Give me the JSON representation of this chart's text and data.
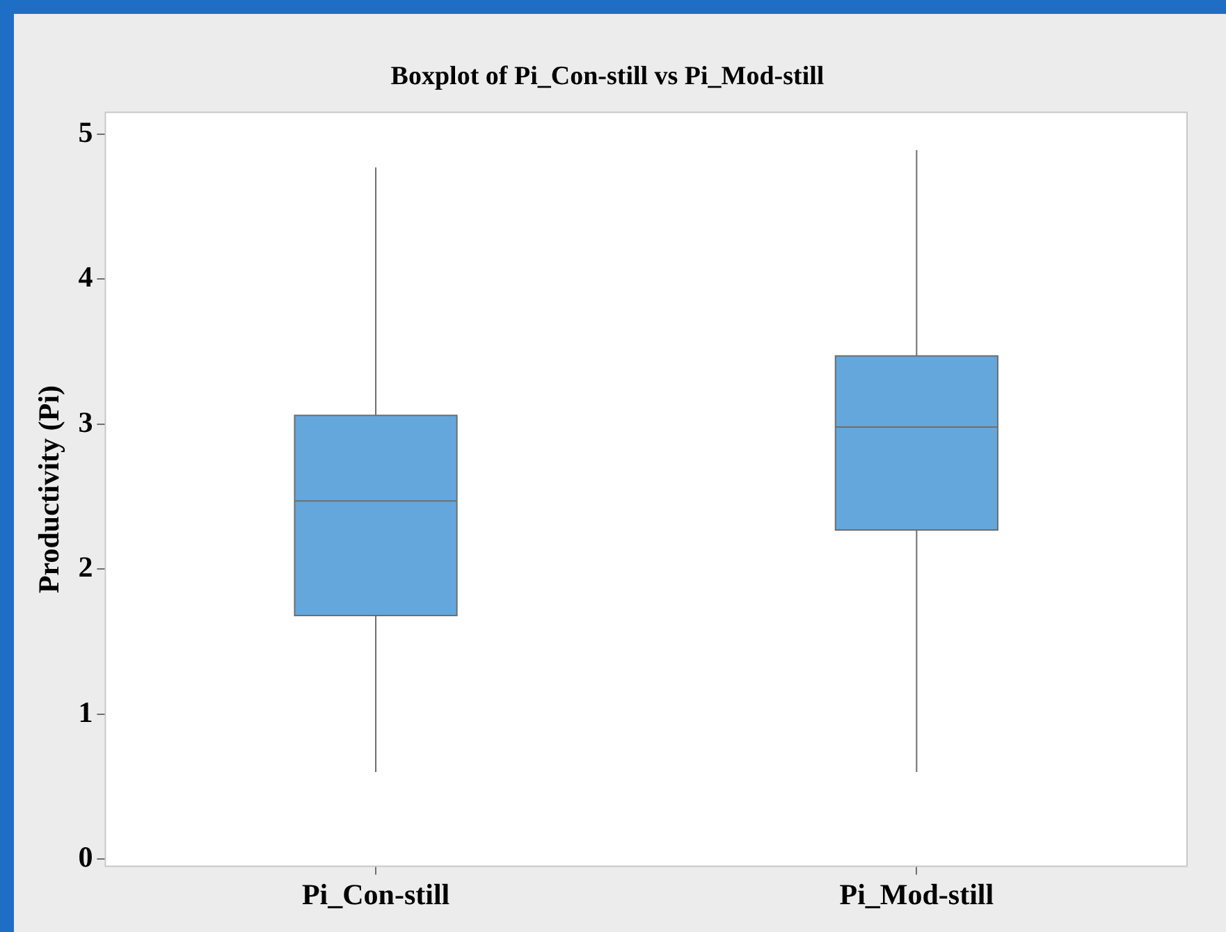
{
  "chart_data": {
    "type": "box",
    "title": "Boxplot of Pi_Con-still vs Pi_Mod-still",
    "ylabel": "Productivity (Pi)",
    "categories": [
      "Pi_Con-still",
      "Pi_Mod-still"
    ],
    "color": "#64a7dc",
    "boxes": [
      {
        "low": 0.6,
        "q1": 1.68,
        "median": 2.47,
        "q3": 3.06,
        "high": 4.77
      },
      {
        "low": 0.6,
        "q1": 2.27,
        "median": 2.98,
        "q3": 3.47,
        "high": 4.89
      }
    ],
    "ylim": [
      -0.05,
      5.15
    ],
    "yticks": [
      0,
      1,
      2,
      3,
      4,
      5
    ]
  }
}
